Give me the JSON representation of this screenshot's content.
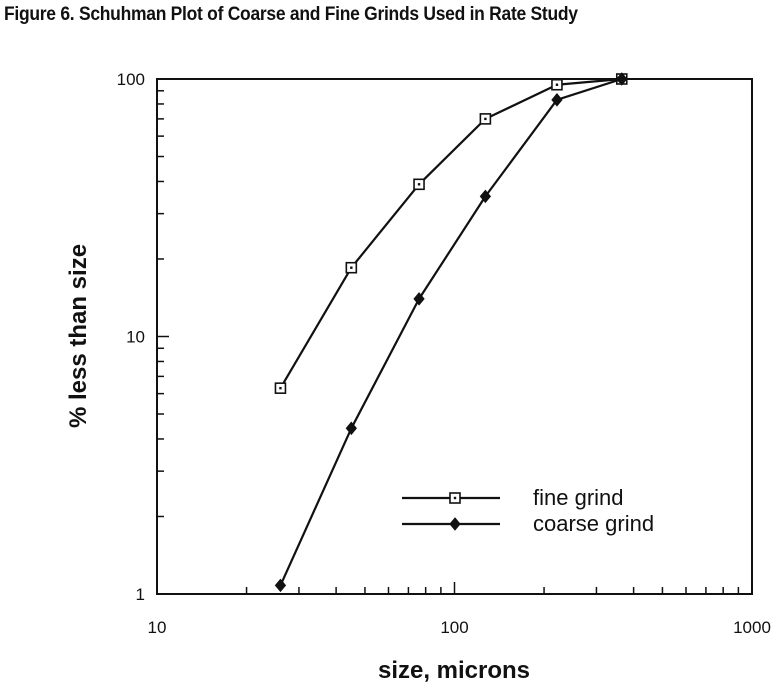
{
  "title": "Figure 6.  Schuhman Plot of Coarse and Fine Grinds Used in Rate Study",
  "chart_data": {
    "type": "line",
    "xlabel": "size, microns",
    "ylabel": "% less than size",
    "xscale": "log",
    "yscale": "log",
    "xlim": [
      10,
      1000
    ],
    "ylim": [
      1,
      100
    ],
    "x_ticks": [
      "10",
      "100",
      "1000"
    ],
    "y_ticks": [
      "1",
      "10",
      "100"
    ],
    "grid": false,
    "legend_position": "bottom-right",
    "series": [
      {
        "name": "fine grind",
        "marker": "open-square",
        "color": "#111111",
        "points": [
          {
            "x": 26,
            "y": 6.3
          },
          {
            "x": 45,
            "y": 18.5
          },
          {
            "x": 76,
            "y": 39
          },
          {
            "x": 127,
            "y": 70
          },
          {
            "x": 221,
            "y": 95
          },
          {
            "x": 365,
            "y": 100
          }
        ]
      },
      {
        "name": "coarse grind",
        "marker": "filled-diamond",
        "color": "#111111",
        "points": [
          {
            "x": 26,
            "y": 1.08
          },
          {
            "x": 45,
            "y": 4.4
          },
          {
            "x": 76,
            "y": 14
          },
          {
            "x": 127,
            "y": 35
          },
          {
            "x": 221,
            "y": 83
          },
          {
            "x": 365,
            "y": 100
          }
        ]
      }
    ]
  }
}
